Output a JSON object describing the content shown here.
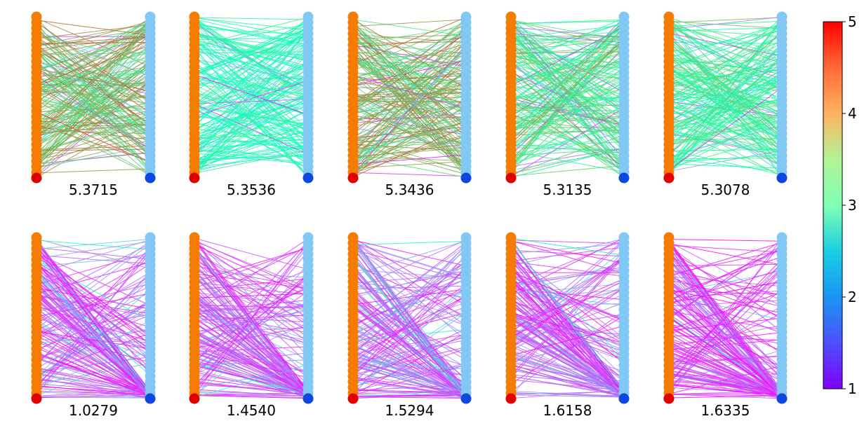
{
  "chart_data": {
    "type": "bipartite-edge-plot",
    "colormap": "rainbow",
    "colorbar": {
      "min": 1,
      "max": 5,
      "ticks": [
        "1",
        "2",
        "3",
        "4",
        "5"
      ]
    },
    "node_colors": {
      "left_column": "#f57c00",
      "left_anchor": "#e00000",
      "right_column": "#81c8f5",
      "right_anchor": "#0d47e0"
    },
    "rows": [
      {
        "panels": [
          {
            "label": "5.3715",
            "score": 5.3715,
            "dominant_edge_value": 4.0
          },
          {
            "label": "5.3536",
            "score": 5.3536,
            "dominant_edge_value": 3.0
          },
          {
            "label": "5.3436",
            "score": 5.3436,
            "dominant_edge_value": 4.0
          },
          {
            "label": "5.3135",
            "score": 5.3135,
            "dominant_edge_value": 3.6
          },
          {
            "label": "5.3078",
            "score": 5.3078,
            "dominant_edge_value": 3.4
          }
        ]
      },
      {
        "panels": [
          {
            "label": "1.0279",
            "score": 1.0279,
            "dominant_edge_value": 1.4
          },
          {
            "label": "1.4540",
            "score": 1.454,
            "dominant_edge_value": 1.4
          },
          {
            "label": "1.5294",
            "score": 1.5294,
            "dominant_edge_value": 1.5
          },
          {
            "label": "1.6158",
            "score": 1.6158,
            "dominant_edge_value": 1.4
          },
          {
            "label": "1.6335",
            "score": 1.6335,
            "dominant_edge_value": 1.3
          }
        ]
      }
    ]
  }
}
